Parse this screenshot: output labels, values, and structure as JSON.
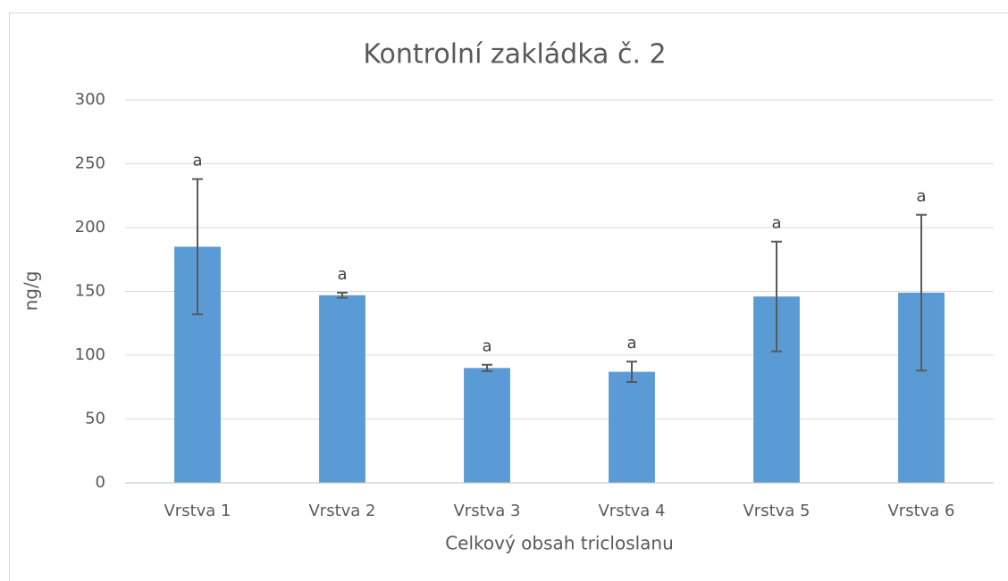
{
  "chart_data": {
    "type": "bar",
    "title": "Kontrolní zakládka č. 2",
    "x_label": "Celkový obsah tricloslanu",
    "y_label": "ng/g",
    "categories": [
      "Vrstva 1",
      "Vrstva 2",
      "Vrstva 3",
      "Vrstva 4",
      "Vrstva 5",
      "Vrstva 6"
    ],
    "values": [
      185,
      147,
      90,
      87,
      146,
      149
    ],
    "errors": [
      53,
      2,
      2.5,
      8,
      43,
      61
    ],
    "annotations": [
      "a",
      "a",
      "a",
      "a",
      "a",
      "a"
    ],
    "color": "#5b9bd5",
    "error_color": "#595959",
    "ylim": [
      0,
      300
    ],
    "yticks": [
      0,
      50,
      100,
      150,
      200,
      250,
      300
    ],
    "grid": true
  }
}
